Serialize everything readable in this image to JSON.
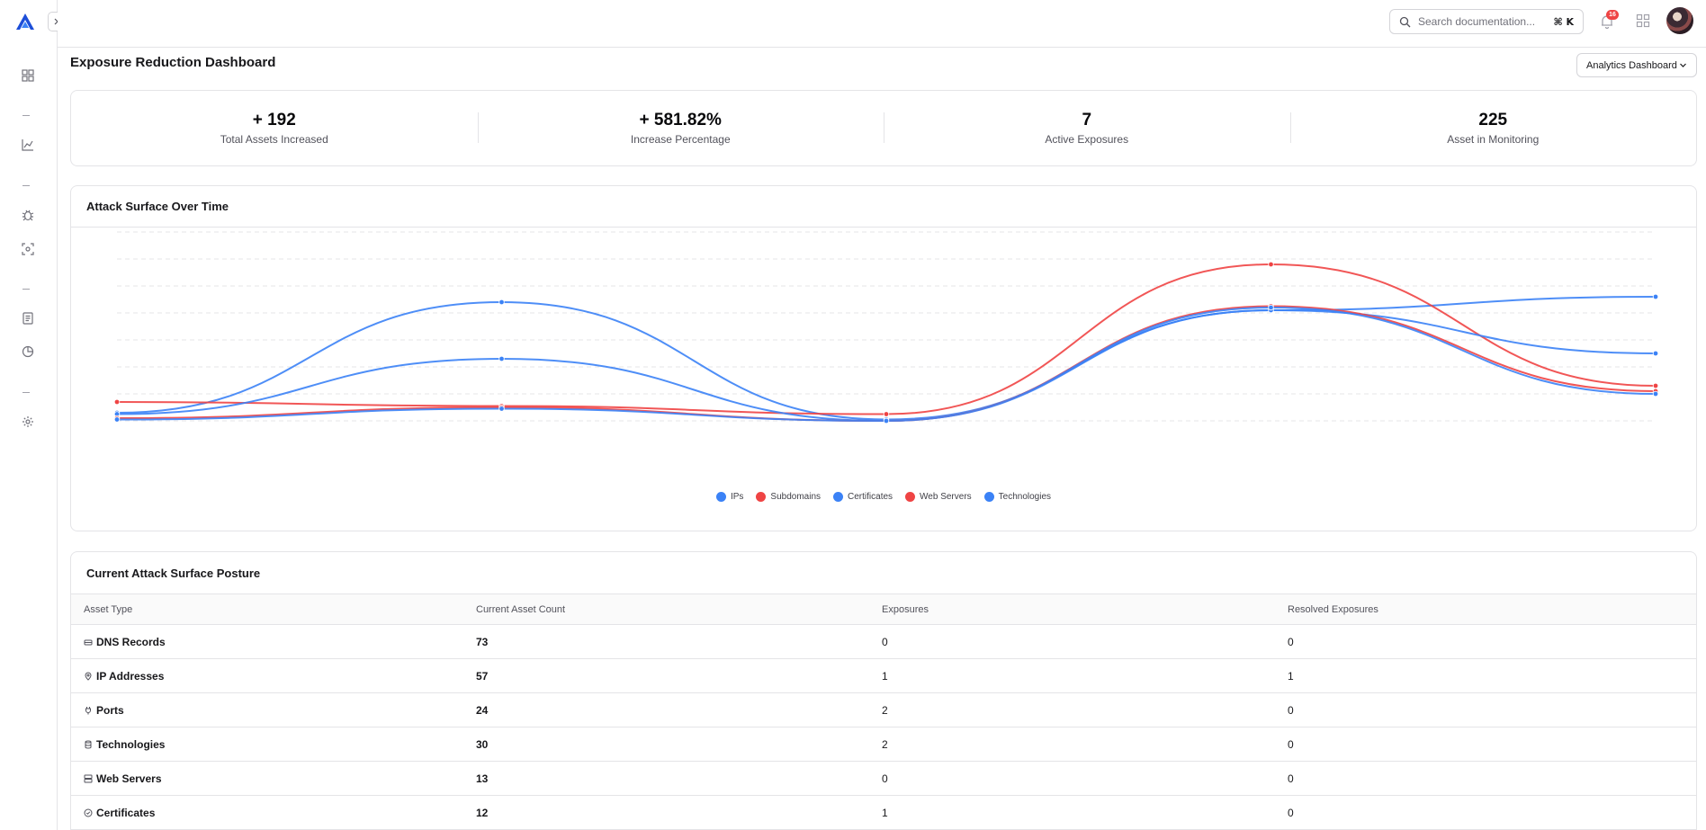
{
  "topbar": {
    "search_placeholder": "Search documentation...",
    "shortcut": "⌘ K",
    "notification_count": "16"
  },
  "page": {
    "title": "Exposure Reduction Dashboard",
    "dashboard_select": "Analytics Dashboard"
  },
  "stats": [
    {
      "value": "+ 192",
      "label": "Total Assets Increased"
    },
    {
      "value": "+ 581.82%",
      "label": "Increase Percentage"
    },
    {
      "value": "7",
      "label": "Active Exposures"
    },
    {
      "value": "225",
      "label": "Asset in Monitoring"
    }
  ],
  "chart_card": {
    "title": "Attack Surface Over Time"
  },
  "chart_data": {
    "type": "line",
    "x": [
      0,
      1,
      2,
      3,
      4
    ],
    "ylim": [
      0,
      7
    ],
    "grid": true,
    "legend_position": "bottom-center",
    "series": [
      {
        "name": "IPs",
        "color": "#3b82f6",
        "values": [
          0.3,
          4.4,
          0.05,
          4.1,
          4.6
        ]
      },
      {
        "name": "Subdomains",
        "color": "#ef4444",
        "values": [
          0.7,
          0.55,
          0.25,
          5.8,
          1.3
        ]
      },
      {
        "name": "Certificates",
        "color": "#3b82f6",
        "values": [
          0.25,
          2.3,
          0.0,
          4.1,
          2.5
        ]
      },
      {
        "name": "Web Servers",
        "color": "#ef4444",
        "values": [
          0.1,
          0.5,
          0.0,
          4.25,
          1.1
        ]
      },
      {
        "name": "Technologies",
        "color": "#3b82f6",
        "values": [
          0.05,
          0.45,
          0.0,
          4.2,
          1.0
        ]
      }
    ]
  },
  "table_card": {
    "title": "Current Attack Surface Posture",
    "headers": [
      "Asset Type",
      "Current Asset Count",
      "Exposures",
      "Resolved Exposures"
    ],
    "rows": [
      {
        "icon": "dns-icon",
        "type": "DNS Records",
        "count": "73",
        "exposures": "0",
        "resolved": "0"
      },
      {
        "icon": "location-pin-icon",
        "type": "IP Addresses",
        "count": "57",
        "exposures": "1",
        "resolved": "1"
      },
      {
        "icon": "plug-icon",
        "type": "Ports",
        "count": "24",
        "exposures": "2",
        "resolved": "0"
      },
      {
        "icon": "database-icon",
        "type": "Technologies",
        "count": "30",
        "exposures": "2",
        "resolved": "0"
      },
      {
        "icon": "server-icon",
        "type": "Web Servers",
        "count": "13",
        "exposures": "0",
        "resolved": "0"
      },
      {
        "icon": "certificate-icon",
        "type": "Certificates",
        "count": "12",
        "exposures": "1",
        "resolved": "0"
      }
    ]
  }
}
